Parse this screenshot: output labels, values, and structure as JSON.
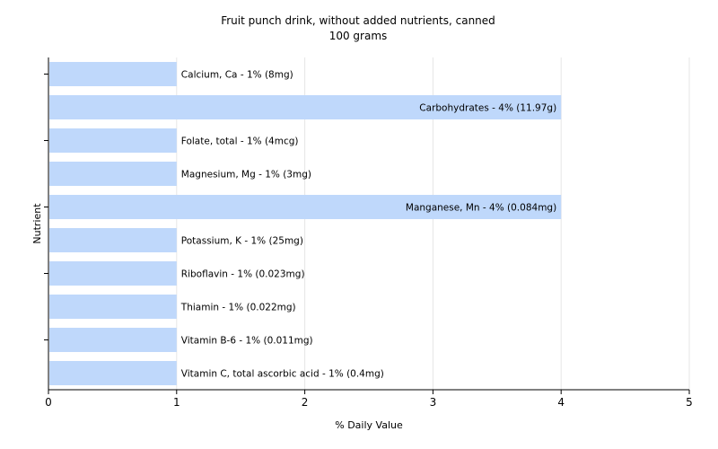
{
  "chart_data": {
    "type": "bar",
    "orientation": "horizontal",
    "title": "Fruit punch drink, without added nutrients, canned",
    "subtitle": "100 grams",
    "xlabel": "% Daily Value",
    "ylabel": "Nutrient",
    "xlim": [
      0,
      5
    ],
    "xticks": [
      0,
      1,
      2,
      3,
      4,
      5
    ],
    "grid": true,
    "bar_color": "#bfd8fb",
    "bars": [
      {
        "label": "Calcium, Ca - 1% (8mg)",
        "value": 1
      },
      {
        "label": "Carbohydrates - 4% (11.97g)",
        "value": 4
      },
      {
        "label": "Folate, total - 1% (4mcg)",
        "value": 1
      },
      {
        "label": "Magnesium, Mg - 1% (3mg)",
        "value": 1
      },
      {
        "label": "Manganese, Mn - 4% (0.084mg)",
        "value": 4
      },
      {
        "label": "Potassium, K - 1% (25mg)",
        "value": 1
      },
      {
        "label": "Riboflavin - 1% (0.023mg)",
        "value": 1
      },
      {
        "label": "Thiamin - 1% (0.022mg)",
        "value": 1
      },
      {
        "label": "Vitamin B-6 - 1% (0.011mg)",
        "value": 1
      },
      {
        "label": "Vitamin C, total ascorbic acid - 1% (0.4mg)",
        "value": 1
      }
    ]
  }
}
